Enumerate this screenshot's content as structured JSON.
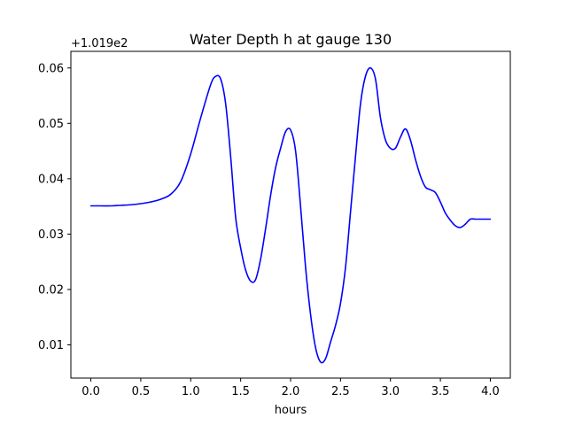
{
  "chart_data": {
    "type": "line",
    "title": "Water Depth h at gauge 130",
    "xlabel": "hours",
    "ylabel": "",
    "y_offset_label": "+1.019e2",
    "xlim": [
      -0.2,
      4.2
    ],
    "ylim": [
      0.004,
      0.063
    ],
    "grid": false,
    "x_ticks": [
      0.0,
      0.5,
      1.0,
      1.5,
      2.0,
      2.5,
      3.0,
      3.5,
      4.0
    ],
    "x_tick_labels": [
      "0.0",
      "0.5",
      "1.0",
      "1.5",
      "2.0",
      "2.5",
      "3.0",
      "3.5",
      "4.0"
    ],
    "y_ticks": [
      0.01,
      0.02,
      0.03,
      0.04,
      0.05,
      0.06
    ],
    "y_tick_labels": [
      "0.01",
      "0.02",
      "0.03",
      "0.04",
      "0.05",
      "0.06"
    ],
    "series": [
      {
        "color": "#0000ff",
        "x": [
          0.0,
          0.1,
          0.2,
          0.3,
          0.4,
          0.5,
          0.6,
          0.7,
          0.8,
          0.9,
          1.0,
          1.1,
          1.2,
          1.25,
          1.3,
          1.35,
          1.4,
          1.45,
          1.5,
          1.55,
          1.6,
          1.65,
          1.7,
          1.75,
          1.8,
          1.85,
          1.9,
          1.95,
          2.0,
          2.05,
          2.1,
          2.15,
          2.2,
          2.25,
          2.3,
          2.35,
          2.4,
          2.45,
          2.5,
          2.55,
          2.6,
          2.65,
          2.7,
          2.75,
          2.8,
          2.85,
          2.9,
          2.95,
          3.0,
          3.05,
          3.1,
          3.15,
          3.2,
          3.25,
          3.3,
          3.35,
          3.4,
          3.45,
          3.5,
          3.55,
          3.6,
          3.65,
          3.7,
          3.75,
          3.8,
          3.85,
          3.9,
          3.95,
          4.0
        ],
        "y": [
          0.0351,
          0.0351,
          0.0351,
          0.0352,
          0.0353,
          0.0355,
          0.0358,
          0.0363,
          0.0372,
          0.0395,
          0.0445,
          0.051,
          0.057,
          0.0585,
          0.058,
          0.0535,
          0.044,
          0.033,
          0.0275,
          0.0235,
          0.0215,
          0.0218,
          0.0255,
          0.031,
          0.037,
          0.042,
          0.0455,
          0.0485,
          0.0488,
          0.045,
          0.035,
          0.024,
          0.0155,
          0.0095,
          0.0069,
          0.0075,
          0.0105,
          0.0135,
          0.0175,
          0.024,
          0.034,
          0.044,
          0.0535,
          0.0585,
          0.06,
          0.058,
          0.051,
          0.047,
          0.0455,
          0.0455,
          0.0475,
          0.049,
          0.047,
          0.0435,
          0.0405,
          0.0385,
          0.038,
          0.0375,
          0.0358,
          0.0338,
          0.0325,
          0.0315,
          0.0312,
          0.0318,
          0.0327,
          0.0327,
          0.0327,
          0.0327,
          0.0327
        ]
      }
    ]
  }
}
